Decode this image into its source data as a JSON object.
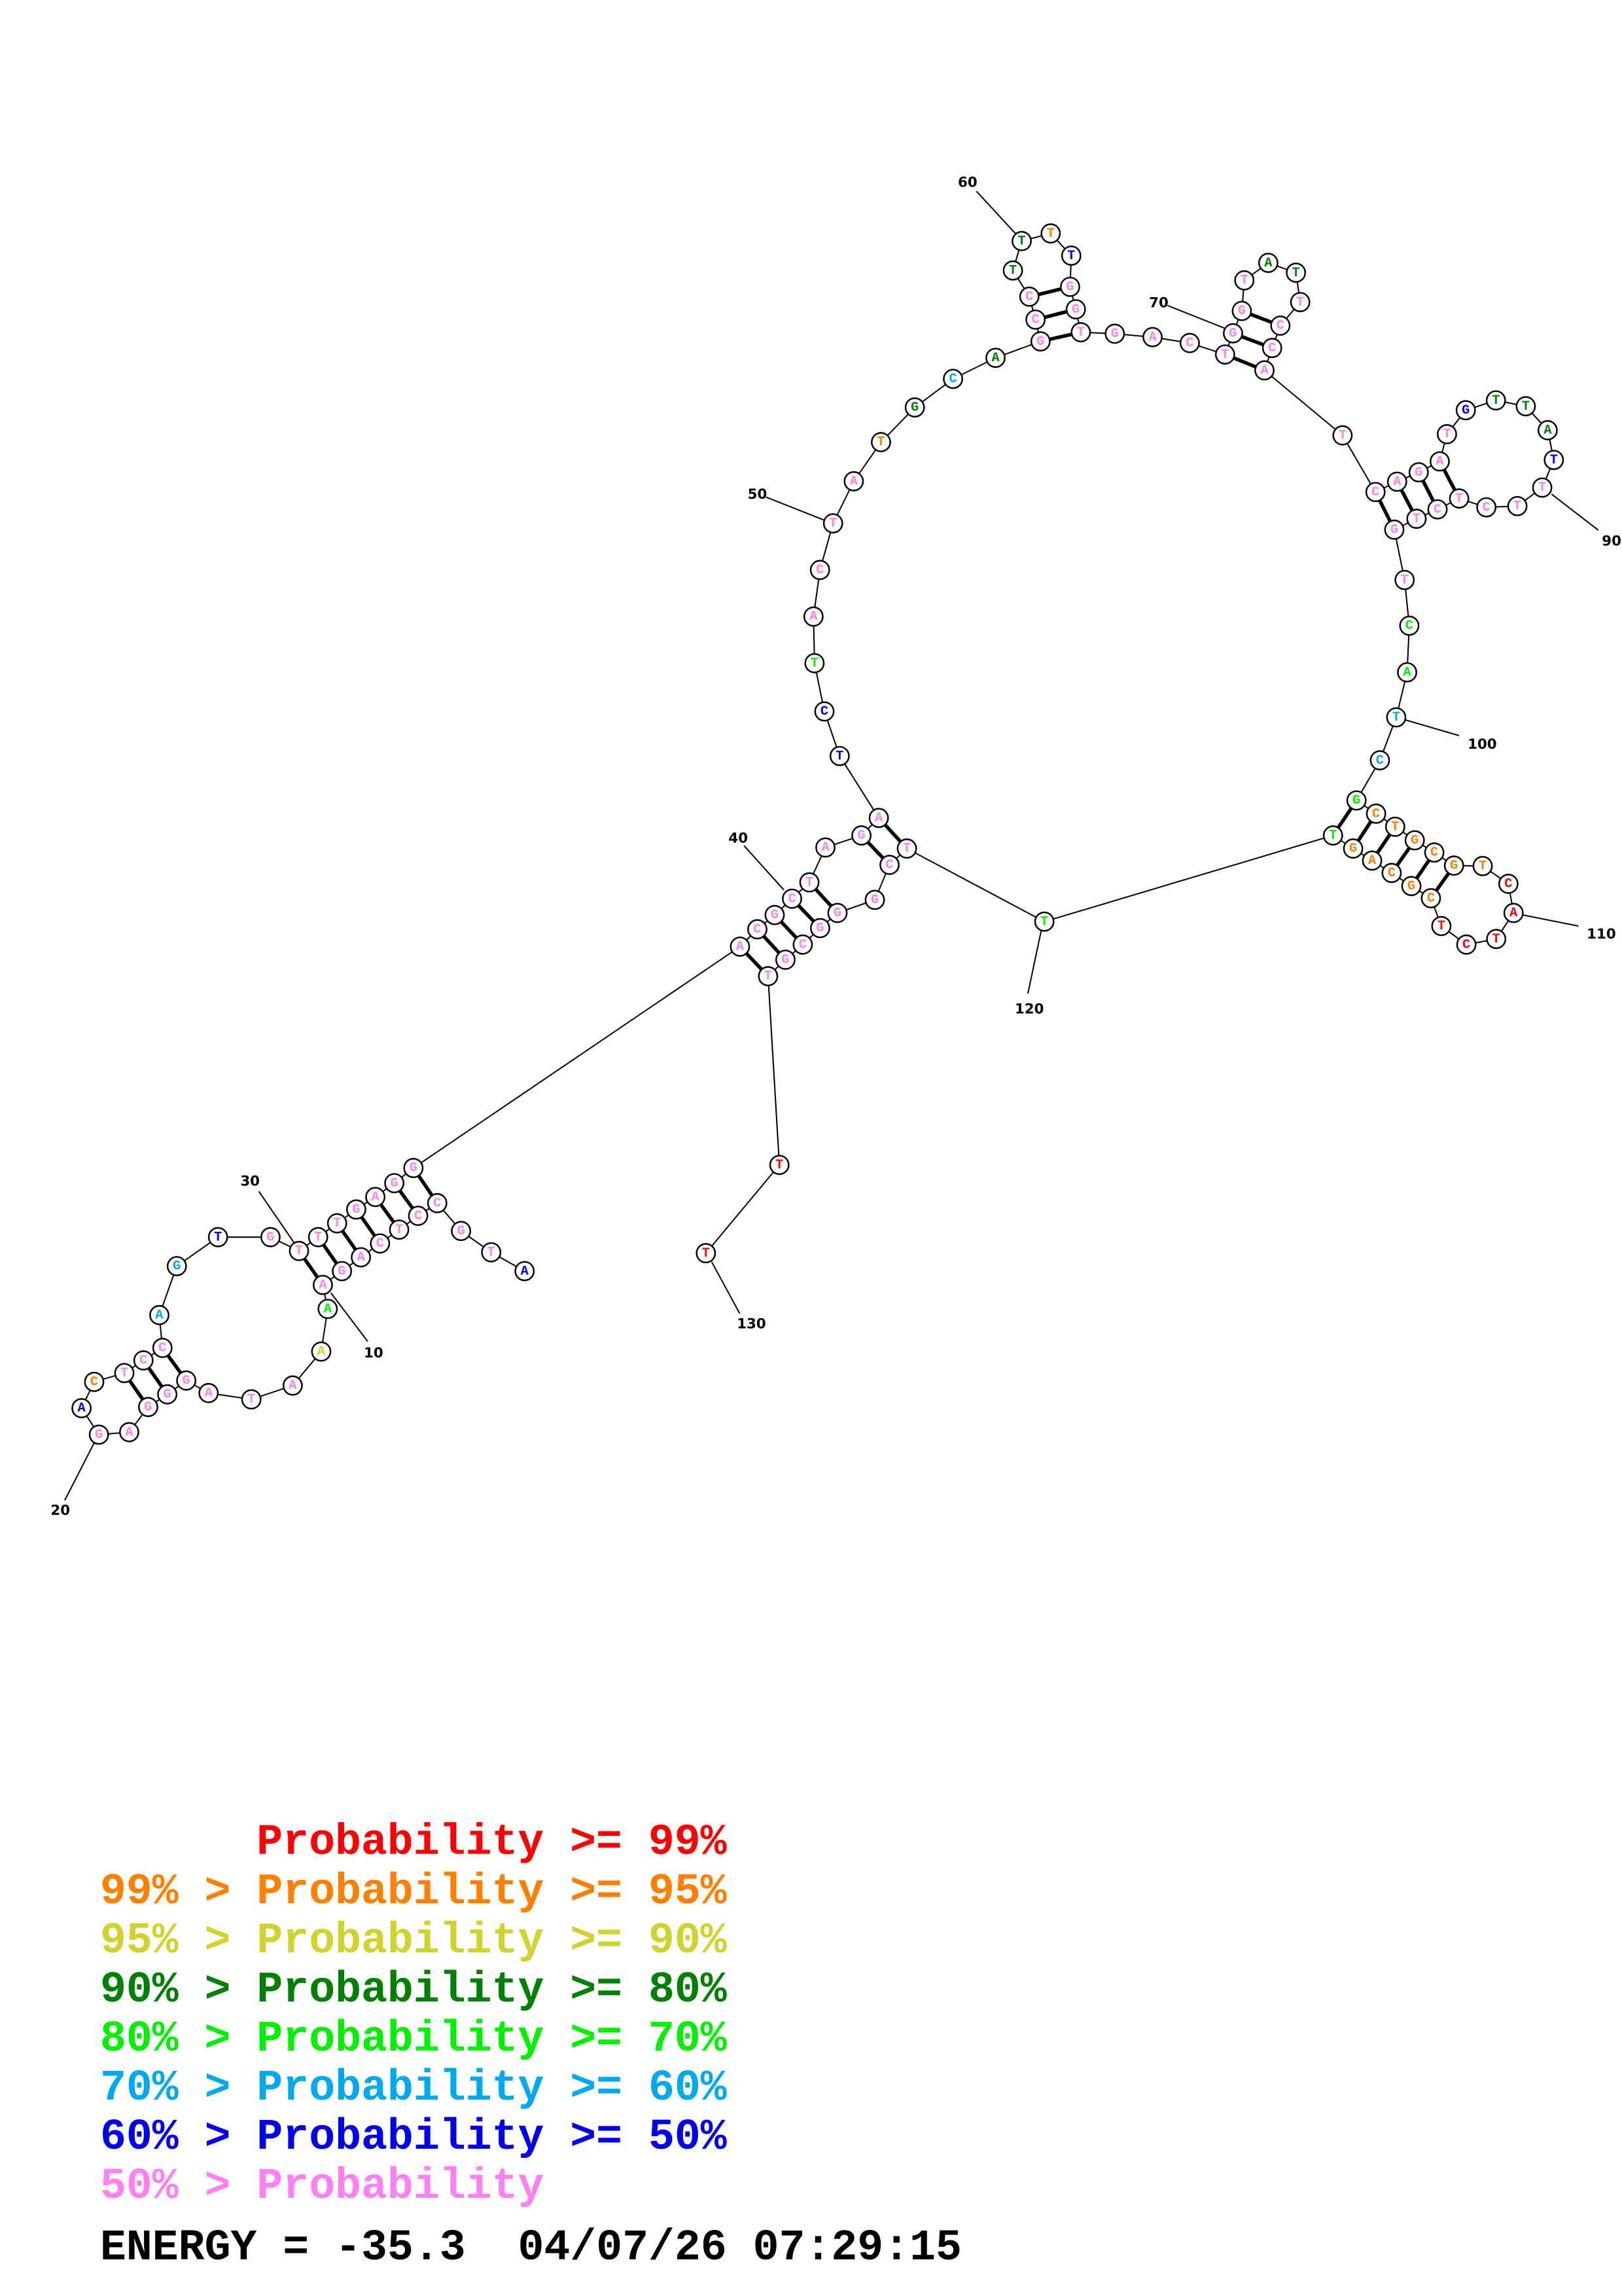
{
  "structure": {
    "sequence_blocks": [
      "ATGCCTCAGA",
      "AAATAGGGAG",
      "ACTCCAGTGT",
      "TTGAGGACGC",
      "TAGATCTACT",
      "ATGCAGCCTT",
      "TTGGTGACTG",
      "GTATTCCATC",
      "AGATGTTATT",
      "TCTCTGTCAT",
      "CGCTGCGTCA",
      "TCTCGCAGTT",
      "TCGGGCGTTT"
    ],
    "probability_level_blocks": [
      "6777777777",
      "4277777777",
      "6177755677",
      "7777777777",
      "7777664777",
      "7135377733",
      "1677777777",
      "7733777777",
      "7777633367",
      "7777777445",
      "5411111100",
      "0001111144",
      "7777777700"
    ],
    "base_pairs": [
      [
        4,
        36
      ],
      [
        5,
        35
      ],
      [
        6,
        34
      ],
      [
        7,
        33
      ],
      [
        8,
        32
      ],
      [
        9,
        31
      ],
      [
        10,
        30
      ],
      [
        16,
        25
      ],
      [
        17,
        24
      ],
      [
        18,
        23
      ],
      [
        37,
        128
      ],
      [
        38,
        127
      ],
      [
        39,
        126
      ],
      [
        40,
        125
      ],
      [
        41,
        124
      ],
      [
        43,
        122
      ],
      [
        44,
        121
      ],
      [
        56,
        65
      ],
      [
        57,
        64
      ],
      [
        58,
        63
      ],
      [
        69,
        78
      ],
      [
        70,
        77
      ],
      [
        71,
        76
      ],
      [
        80,
        96
      ],
      [
        81,
        95
      ],
      [
        82,
        94
      ],
      [
        83,
        93
      ],
      [
        102,
        119
      ],
      [
        103,
        118
      ],
      [
        104,
        117
      ],
      [
        105,
        116
      ],
      [
        106,
        115
      ],
      [
        107,
        114
      ]
    ],
    "position_labels": [
      "10",
      "20",
      "30",
      "40",
      "50",
      "60",
      "70",
      "90",
      "100",
      "110",
      "120",
      "130"
    ]
  },
  "legend": {
    "levels": [
      {
        "prefix": "",
        "text": "Probability >= 99%",
        "color": "#ff0000"
      },
      {
        "prefix": "99% > ",
        "text": "Probability >= 95%",
        "color": "#ff8000"
      },
      {
        "prefix": "95% > ",
        "text": "Probability >= 90%",
        "color": "#d2d22e"
      },
      {
        "prefix": "90% > ",
        "text": "Probability >= 80%",
        "color": "#008000"
      },
      {
        "prefix": "80% > ",
        "text": "Probability >= 70%",
        "color": "#00f000"
      },
      {
        "prefix": "70% > ",
        "text": "Probability >= 60%",
        "color": "#00a8f0"
      },
      {
        "prefix": "60% > ",
        "text": "Probability >= 50%",
        "color": "#0000ee"
      },
      {
        "prefix": "50% > ",
        "text": "Probability",
        "color": "#ff80f0"
      }
    ]
  },
  "footer": {
    "energy_label": "ENERGY = ",
    "energy_value": "-35.3",
    "date": "04/07/26",
    "time": "07:29:15"
  }
}
